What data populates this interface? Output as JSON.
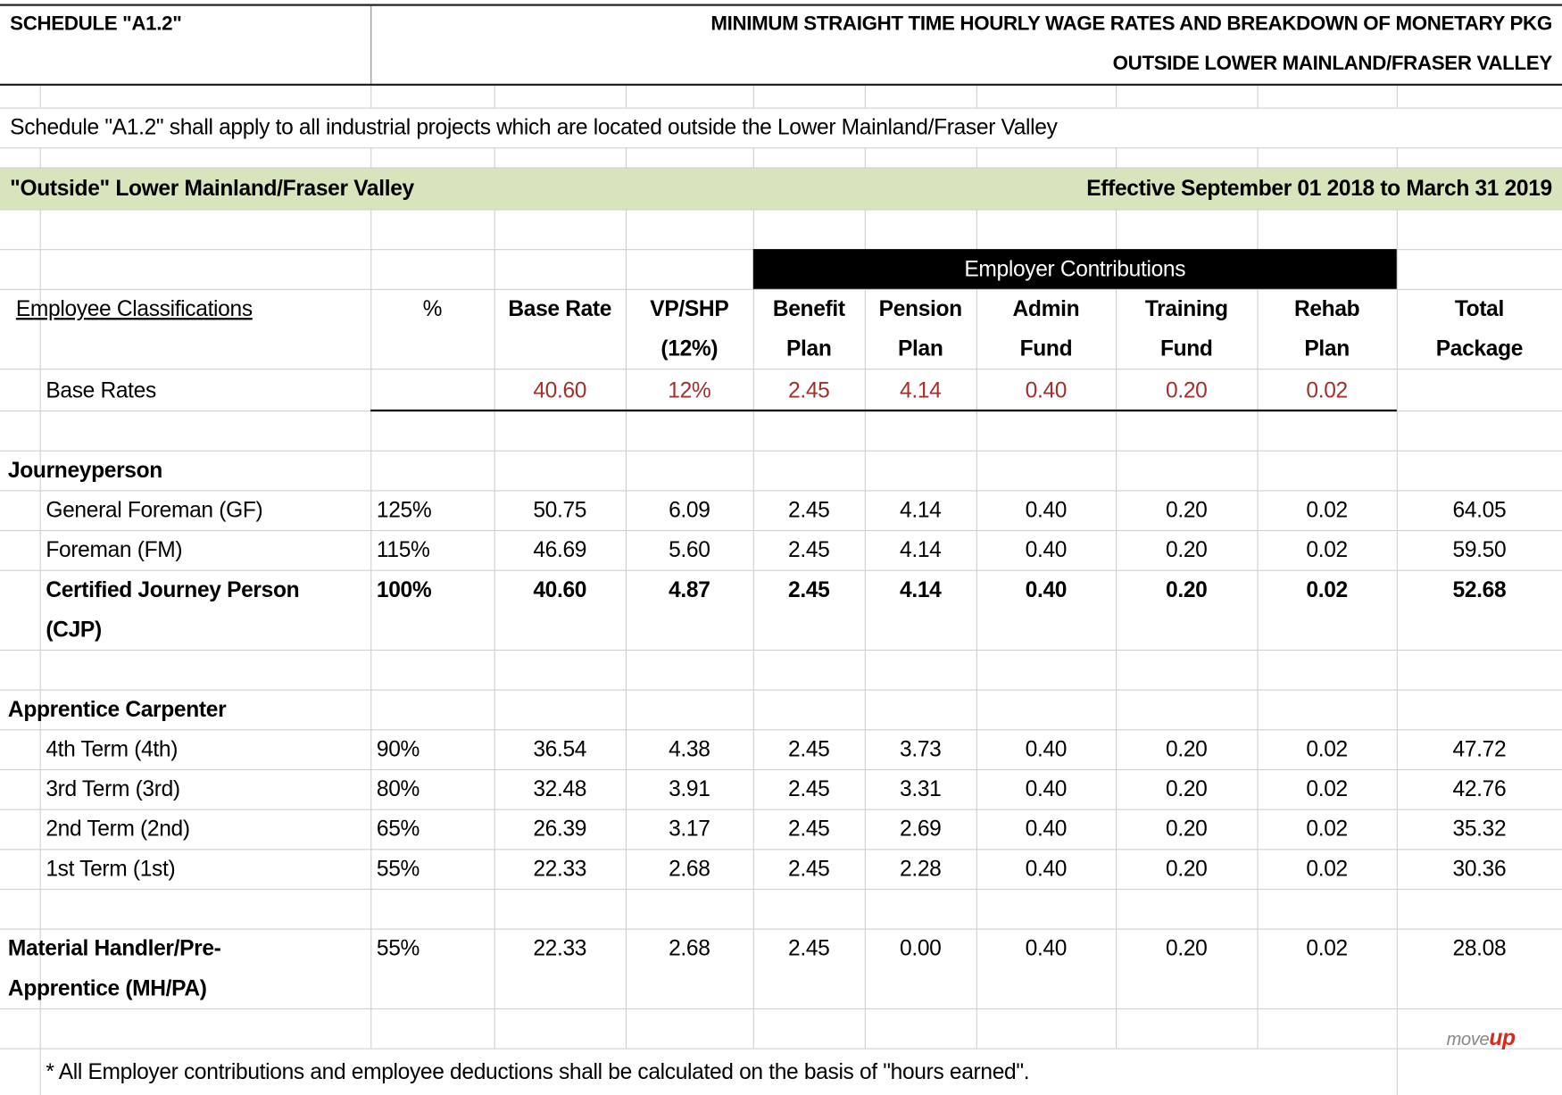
{
  "header": {
    "schedule": "SCHEDULE \"A1.2\"",
    "title_line1": "MINIMUM STRAIGHT TIME HOURLY WAGE RATES AND BREAKDOWN OF MONETARY PKG",
    "title_line2": "OUTSIDE LOWER MAINLAND/FRASER VALLEY"
  },
  "intro": "Schedule \"A1.2\" shall apply to all industrial projects which are located outside the Lower Mainland/Fraser Valley",
  "region": {
    "name": "\"Outside\" Lower Mainland/Fraser Valley",
    "effective": "Effective September 01 2018 to March 31 2019"
  },
  "table": {
    "group_header": "Employer Contributions",
    "columns": [
      [
        "Employee Classifications"
      ],
      [
        "%"
      ],
      [
        "Base Rate"
      ],
      [
        "VP/SHP",
        "(12%)"
      ],
      [
        "Benefit",
        "Plan"
      ],
      [
        "Pension",
        "Plan"
      ],
      [
        "Admin",
        "Fund"
      ],
      [
        "Training",
        "Fund"
      ],
      [
        "Rehab",
        "Plan"
      ],
      [
        "Total",
        "Package"
      ]
    ],
    "base_rates": {
      "label": "Base Rates",
      "values": [
        "40.60",
        "12%",
        "2.45",
        "4.14",
        "0.40",
        "0.20",
        "0.02"
      ]
    },
    "sections": [
      {
        "title": "Journeyperson",
        "rows": [
          {
            "label": "General Foreman (GF)",
            "values": [
              "125%",
              "50.75",
              "6.09",
              "2.45",
              "4.14",
              "0.40",
              "0.20",
              "0.02",
              "64.05"
            ]
          },
          {
            "label": "Foreman (FM)",
            "values": [
              "115%",
              "46.69",
              "5.60",
              "2.45",
              "4.14",
              "0.40",
              "0.20",
              "0.02",
              "59.50"
            ]
          },
          {
            "label": "Certified Journey Person (CJP)",
            "values": [
              "100%",
              "40.60",
              "4.87",
              "2.45",
              "4.14",
              "0.40",
              "0.20",
              "0.02",
              "52.68"
            ]
          }
        ]
      },
      {
        "title": "Apprentice Carpenter",
        "rows": [
          {
            "label": "4th Term (4th)",
            "values": [
              "90%",
              "36.54",
              "4.38",
              "2.45",
              "3.73",
              "0.40",
              "0.20",
              "0.02",
              "47.72"
            ]
          },
          {
            "label": "3rd Term (3rd)",
            "values": [
              "80%",
              "32.48",
              "3.91",
              "2.45",
              "3.31",
              "0.40",
              "0.20",
              "0.02",
              "42.76"
            ]
          },
          {
            "label": "2nd Term (2nd)",
            "values": [
              "65%",
              "26.39",
              "3.17",
              "2.45",
              "2.69",
              "0.40",
              "0.20",
              "0.02",
              "35.32"
            ]
          },
          {
            "label": "1st Term (1st)",
            "values": [
              "55%",
              "22.33",
              "2.68",
              "2.45",
              "2.28",
              "0.40",
              "0.20",
              "0.02",
              "30.36"
            ]
          }
        ]
      },
      {
        "title": "Material Handler/Pre-Apprentice (MH/PA)",
        "values": [
          "55%",
          "22.33",
          "2.68",
          "2.45",
          "0.00",
          "0.40",
          "0.20",
          "0.02",
          "28.08"
        ]
      }
    ]
  },
  "logo": {
    "move": "move",
    "up": "up"
  },
  "footnote": "* All Employer contributions and employee deductions shall be calculated on the basis of \"hours earned\"."
}
